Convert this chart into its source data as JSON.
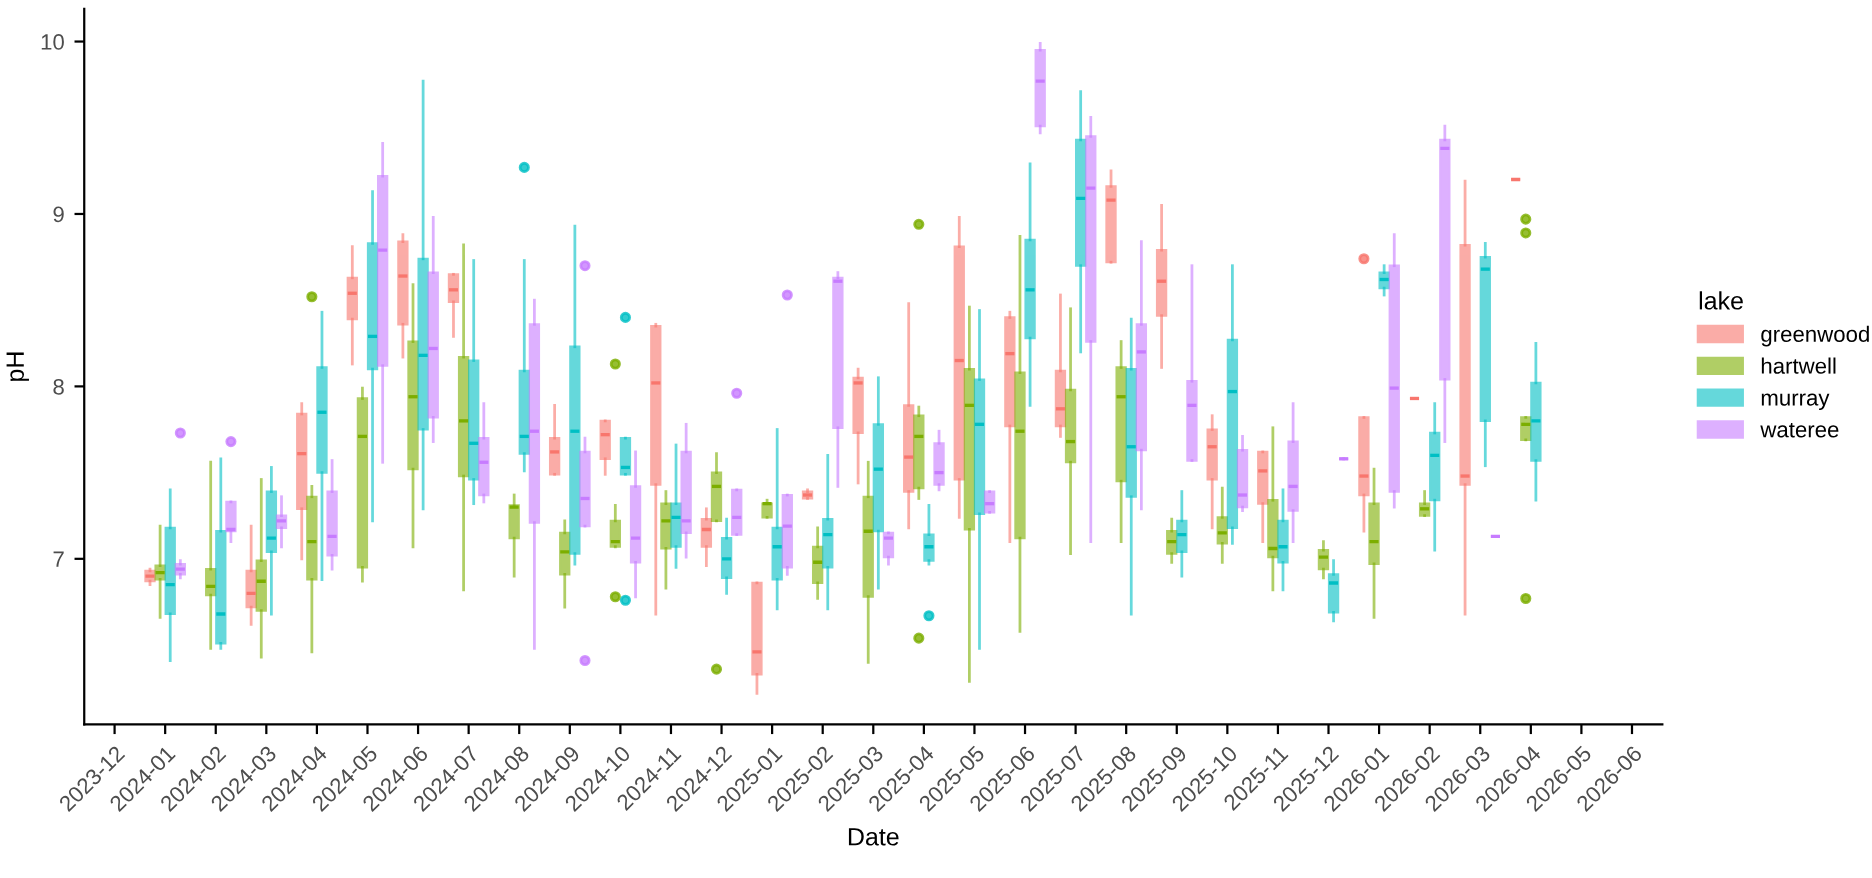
{
  "chart_data": {
    "type": "box",
    "xlabel": "Date",
    "ylabel": "pH",
    "legend_title": "lake",
    "legend": "right",
    "grid": false,
    "categories": [
      "2023-12",
      "2024-01",
      "2024-02",
      "2024-03",
      "2024-04",
      "2024-05",
      "2024-06",
      "2024-07",
      "2024-08",
      "2024-09",
      "2024-10",
      "2024-11",
      "2024-12",
      "2025-01",
      "2025-02",
      "2025-03",
      "2025-04",
      "2025-05",
      "2025-06",
      "2025-07",
      "2025-08",
      "2025-09",
      "2025-10",
      "2025-11",
      "2025-12",
      "2026-01",
      "2026-02",
      "2026-03",
      "2026-04",
      "2026-05",
      "2026-06"
    ],
    "ylim": [
      6.04,
      10.19
    ],
    "yticks": [
      7,
      8,
      9,
      10
    ],
    "series": [
      {
        "name": "greenwood",
        "color": "#f8766d",
        "boxes": [
          null,
          {
            "low": 6.85,
            "q1": 6.87,
            "median": 6.9,
            "q3": 6.93,
            "high": 6.94
          },
          null,
          {
            "low": 6.62,
            "q1": 6.72,
            "median": 6.8,
            "q3": 6.93,
            "high": 7.19
          },
          {
            "low": 7.0,
            "q1": 7.29,
            "median": 7.61,
            "q3": 7.84,
            "high": 7.9
          },
          {
            "low": 8.13,
            "q1": 8.39,
            "median": 8.54,
            "q3": 8.63,
            "high": 8.81
          },
          {
            "low": 8.17,
            "q1": 8.36,
            "median": 8.64,
            "q3": 8.84,
            "high": 8.88
          },
          {
            "low": 8.29,
            "q1": 8.49,
            "median": 8.56,
            "q3": 8.65,
            "high": 8.65
          },
          null,
          {
            "low": 7.49,
            "q1": 7.49,
            "median": 7.62,
            "q3": 7.7,
            "high": 7.89
          },
          {
            "low": 7.49,
            "q1": 7.58,
            "median": 7.72,
            "q3": 7.8,
            "high": 7.8
          },
          {
            "low": 6.68,
            "q1": 7.43,
            "median": 8.02,
            "q3": 8.35,
            "high": 8.36
          },
          {
            "low": 6.96,
            "q1": 7.07,
            "median": 7.17,
            "q3": 7.23,
            "high": 7.29
          },
          {
            "low": 6.22,
            "q1": 6.33,
            "median": 6.46,
            "q3": 6.86,
            "high": 6.86
          },
          {
            "low": 7.35,
            "q1": 7.35,
            "median": 7.37,
            "q3": 7.39,
            "high": 7.4
          },
          {
            "low": 7.44,
            "q1": 7.73,
            "median": 8.02,
            "q3": 8.05,
            "high": 8.1
          },
          {
            "low": 7.18,
            "q1": 7.39,
            "median": 7.59,
            "q3": 7.89,
            "high": 8.48
          },
          {
            "low": 7.24,
            "q1": 7.46,
            "median": 8.15,
            "q3": 8.81,
            "high": 8.98
          },
          {
            "low": 7.1,
            "q1": 7.77,
            "median": 8.19,
            "q3": 8.4,
            "high": 8.43
          },
          {
            "low": 7.71,
            "q1": 7.77,
            "median": 7.87,
            "q3": 8.09,
            "high": 8.53
          },
          {
            "low": 8.72,
            "q1": 8.72,
            "median": 9.08,
            "q3": 9.16,
            "high": 9.25
          },
          {
            "low": 8.11,
            "q1": 8.41,
            "median": 8.61,
            "q3": 8.79,
            "high": 9.05
          },
          {
            "low": 7.18,
            "q1": 7.46,
            "median": 7.65,
            "q3": 7.75,
            "high": 7.83
          },
          {
            "low": 7.1,
            "q1": 7.32,
            "median": 7.51,
            "q3": 7.62,
            "high": 7.62
          },
          null,
          {
            "low": 7.16,
            "q1": 7.37,
            "median": 7.48,
            "q3": 7.82,
            "high": 7.82,
            "outliers": [
              8.74
            ]
          },
          {
            "low": 7.93,
            "q1": 7.93,
            "median": 7.93,
            "q3": 7.93,
            "high": 7.93
          },
          {
            "low": 6.68,
            "q1": 7.43,
            "median": 7.48,
            "q3": 8.82,
            "high": 9.19
          },
          {
            "low": 9.2,
            "q1": 9.2,
            "median": 9.2,
            "q3": 9.2,
            "high": 9.2
          },
          null,
          null
        ]
      },
      {
        "name": "hartwell",
        "color": "#7cae00",
        "boxes": [
          null,
          {
            "low": 6.66,
            "q1": 6.88,
            "median": 6.92,
            "q3": 6.96,
            "high": 7.19
          },
          {
            "low": 6.48,
            "q1": 6.79,
            "median": 6.84,
            "q3": 6.94,
            "high": 7.56
          },
          {
            "low": 6.43,
            "q1": 6.7,
            "median": 6.87,
            "q3": 6.99,
            "high": 7.46
          },
          {
            "low": 6.46,
            "q1": 6.88,
            "median": 7.1,
            "q3": 7.36,
            "high": 7.42,
            "outliers": [
              8.52
            ]
          },
          {
            "low": 6.87,
            "q1": 6.95,
            "median": 7.71,
            "q3": 7.93,
            "high": 7.99
          },
          {
            "low": 7.07,
            "q1": 7.52,
            "median": 7.94,
            "q3": 8.26,
            "high": 8.59
          },
          {
            "low": 6.82,
            "q1": 7.48,
            "median": 7.8,
            "q3": 8.17,
            "high": 8.82
          },
          {
            "low": 6.9,
            "q1": 7.12,
            "median": 7.3,
            "q3": 7.31,
            "high": 7.37
          },
          {
            "low": 6.72,
            "q1": 6.91,
            "median": 7.04,
            "q3": 7.15,
            "high": 7.22
          },
          {
            "low": 7.07,
            "q1": 7.07,
            "median": 7.1,
            "q3": 7.22,
            "high": 7.31,
            "outliers": [
              8.13,
              6.78
            ]
          },
          {
            "low": 6.83,
            "q1": 7.06,
            "median": 7.22,
            "q3": 7.32,
            "high": 7.39
          },
          {
            "low": 7.22,
            "q1": 7.22,
            "median": 7.42,
            "q3": 7.5,
            "high": 7.61,
            "outliers": [
              6.36
            ]
          },
          {
            "low": 7.24,
            "q1": 7.24,
            "median": 7.32,
            "q3": 7.32,
            "high": 7.34
          },
          {
            "low": 6.77,
            "q1": 6.86,
            "median": 6.98,
            "q3": 7.07,
            "high": 7.18
          },
          {
            "low": 6.4,
            "q1": 6.78,
            "median": 7.16,
            "q3": 7.36,
            "high": 7.56
          },
          {
            "low": 7.35,
            "q1": 7.41,
            "median": 7.71,
            "q3": 7.83,
            "high": 7.88,
            "outliers": [
              8.94,
              6.54
            ]
          },
          {
            "low": 6.29,
            "q1": 7.17,
            "median": 7.89,
            "q3": 8.1,
            "high": 8.46
          },
          {
            "low": 6.58,
            "q1": 7.12,
            "median": 7.74,
            "q3": 8.08,
            "high": 8.87
          },
          {
            "low": 7.03,
            "q1": 7.56,
            "median": 7.68,
            "q3": 7.98,
            "high": 8.45
          },
          {
            "low": 7.1,
            "q1": 7.45,
            "median": 7.94,
            "q3": 8.11,
            "high": 8.26
          },
          {
            "low": 6.98,
            "q1": 7.03,
            "median": 7.1,
            "q3": 7.16,
            "high": 7.23
          },
          {
            "low": 6.98,
            "q1": 7.09,
            "median": 7.15,
            "q3": 7.24,
            "high": 7.41
          },
          {
            "low": 6.82,
            "q1": 7.01,
            "median": 7.06,
            "q3": 7.34,
            "high": 7.76
          },
          {
            "low": 6.89,
            "q1": 6.94,
            "median": 7.01,
            "q3": 7.05,
            "high": 7.1
          },
          {
            "low": 6.66,
            "q1": 6.97,
            "median": 7.1,
            "q3": 7.32,
            "high": 7.52
          },
          {
            "low": 7.25,
            "q1": 7.25,
            "median": 7.29,
            "q3": 7.32,
            "high": 7.39
          },
          null,
          {
            "low": 7.69,
            "q1": 7.69,
            "median": 7.78,
            "q3": 7.82,
            "high": 7.82,
            "outliers": [
              8.97,
              8.89,
              6.77
            ]
          },
          null,
          null
        ]
      },
      {
        "name": "murray",
        "color": "#00bfc4",
        "boxes": [
          null,
          {
            "low": 6.41,
            "q1": 6.68,
            "median": 6.85,
            "q3": 7.18,
            "high": 7.4
          },
          {
            "low": 6.48,
            "q1": 6.51,
            "median": 6.68,
            "q3": 7.16,
            "high": 7.58
          },
          {
            "low": 6.68,
            "q1": 7.04,
            "median": 7.12,
            "q3": 7.39,
            "high": 7.53
          },
          {
            "low": 6.88,
            "q1": 7.5,
            "median": 7.85,
            "q3": 8.11,
            "high": 8.43
          },
          {
            "low": 7.22,
            "q1": 8.1,
            "median": 8.29,
            "q3": 8.83,
            "high": 9.13
          },
          {
            "low": 7.29,
            "q1": 7.75,
            "median": 8.18,
            "q3": 8.74,
            "high": 9.77
          },
          {
            "low": 7.32,
            "q1": 7.46,
            "median": 7.67,
            "q3": 8.15,
            "high": 8.73
          },
          {
            "low": 7.51,
            "q1": 7.61,
            "median": 7.71,
            "q3": 8.09,
            "high": 8.73,
            "outliers": [
              9.27
            ]
          },
          {
            "low": 6.97,
            "q1": 7.03,
            "median": 7.74,
            "q3": 8.23,
            "high": 8.93
          },
          {
            "low": 7.49,
            "q1": 7.49,
            "median": 7.53,
            "q3": 7.7,
            "high": 7.7,
            "outliers": [
              8.4,
              6.76
            ]
          },
          {
            "low": 6.95,
            "q1": 7.07,
            "median": 7.24,
            "q3": 7.32,
            "high": 7.66
          },
          {
            "low": 6.8,
            "q1": 6.89,
            "median": 7.0,
            "q3": 7.12,
            "high": 7.23
          },
          {
            "low": 6.71,
            "q1": 6.88,
            "median": 7.07,
            "q3": 7.18,
            "high": 7.75
          },
          {
            "low": 6.71,
            "q1": 6.95,
            "median": 7.14,
            "q3": 7.23,
            "high": 7.6
          },
          {
            "low": 6.83,
            "q1": 7.16,
            "median": 7.52,
            "q3": 7.78,
            "high": 8.05
          },
          {
            "low": 6.97,
            "q1": 6.99,
            "median": 7.07,
            "q3": 7.14,
            "high": 7.31,
            "outliers": [
              6.67
            ]
          },
          {
            "low": 6.48,
            "q1": 7.26,
            "median": 7.78,
            "q3": 8.04,
            "high": 8.44
          },
          {
            "low": 7.89,
            "q1": 8.28,
            "median": 8.56,
            "q3": 8.85,
            "high": 9.29
          },
          {
            "low": 8.2,
            "q1": 8.7,
            "median": 9.09,
            "q3": 9.43,
            "high": 9.71
          },
          {
            "low": 6.68,
            "q1": 7.36,
            "median": 7.65,
            "q3": 8.1,
            "high": 8.39
          },
          {
            "low": 6.9,
            "q1": 7.04,
            "median": 7.14,
            "q3": 7.22,
            "high": 7.39
          },
          {
            "low": 7.09,
            "q1": 7.18,
            "median": 7.97,
            "q3": 8.27,
            "high": 8.7
          },
          {
            "low": 6.82,
            "q1": 6.98,
            "median": 7.07,
            "q3": 7.22,
            "high": 7.4
          },
          {
            "low": 6.64,
            "q1": 6.69,
            "median": 6.86,
            "q3": 6.91,
            "high": 6.99
          },
          {
            "low": 8.53,
            "q1": 8.57,
            "median": 8.62,
            "q3": 8.66,
            "high": 8.7
          },
          {
            "low": 7.05,
            "q1": 7.34,
            "median": 7.6,
            "q3": 7.73,
            "high": 7.9
          },
          {
            "low": 7.54,
            "q1": 7.8,
            "median": 8.68,
            "q3": 8.75,
            "high": 8.83
          },
          {
            "low": 7.34,
            "q1": 7.57,
            "median": 7.8,
            "q3": 8.02,
            "high": 8.25
          },
          null,
          null
        ]
      },
      {
        "name": "wateree",
        "color": "#c77cff",
        "boxes": [
          null,
          {
            "low": 6.89,
            "q1": 6.91,
            "median": 6.94,
            "q3": 6.97,
            "high": 6.99,
            "outliers": [
              7.73
            ]
          },
          {
            "low": 7.1,
            "q1": 7.16,
            "median": 7.17,
            "q3": 7.33,
            "high": 7.33,
            "outliers": [
              7.68
            ]
          },
          {
            "low": 7.07,
            "q1": 7.18,
            "median": 7.22,
            "q3": 7.25,
            "high": 7.36
          },
          {
            "low": 6.94,
            "q1": 7.02,
            "median": 7.13,
            "q3": 7.39,
            "high": 7.57
          },
          {
            "low": 7.56,
            "q1": 8.12,
            "median": 8.79,
            "q3": 9.22,
            "high": 9.41
          },
          {
            "low": 7.68,
            "q1": 7.82,
            "median": 8.22,
            "q3": 8.66,
            "high": 8.98
          },
          {
            "low": 7.33,
            "q1": 7.37,
            "median": 7.56,
            "q3": 7.7,
            "high": 7.9
          },
          {
            "low": 6.48,
            "q1": 7.21,
            "median": 7.74,
            "q3": 8.36,
            "high": 8.5
          },
          {
            "low": 7.19,
            "q1": 7.19,
            "median": 7.35,
            "q3": 7.62,
            "high": 7.7,
            "outliers": [
              8.7,
              6.41
            ]
          },
          {
            "low": 6.78,
            "q1": 6.98,
            "median": 7.12,
            "q3": 7.42,
            "high": 7.62
          },
          {
            "low": 7.01,
            "q1": 7.15,
            "median": 7.22,
            "q3": 7.62,
            "high": 7.78
          },
          {
            "low": 7.14,
            "q1": 7.14,
            "median": 7.24,
            "q3": 7.4,
            "high": 7.4,
            "outliers": [
              7.96
            ]
          },
          {
            "low": 6.91,
            "q1": 6.95,
            "median": 7.19,
            "q3": 7.37,
            "high": 7.37,
            "outliers": [
              8.53
            ]
          },
          {
            "low": 7.42,
            "q1": 7.76,
            "median": 8.61,
            "q3": 8.63,
            "high": 8.66
          },
          {
            "low": 6.97,
            "q1": 7.01,
            "median": 7.12,
            "q3": 7.15,
            "high": 7.15
          },
          {
            "low": 7.4,
            "q1": 7.43,
            "median": 7.5,
            "q3": 7.67,
            "high": 7.74
          },
          {
            "low": 7.27,
            "q1": 7.27,
            "median": 7.32,
            "q3": 7.39,
            "high": 7.39
          },
          {
            "low": 9.47,
            "q1": 9.51,
            "median": 9.77,
            "q3": 9.95,
            "high": 9.99
          },
          {
            "low": 7.1,
            "q1": 8.26,
            "median": 9.15,
            "q3": 9.45,
            "high": 9.56
          },
          {
            "low": 7.29,
            "q1": 7.63,
            "median": 8.2,
            "q3": 8.36,
            "high": 8.84
          },
          {
            "low": 7.57,
            "q1": 7.57,
            "median": 7.89,
            "q3": 8.03,
            "high": 8.7
          },
          {
            "low": 7.28,
            "q1": 7.3,
            "median": 7.37,
            "q3": 7.63,
            "high": 7.71
          },
          {
            "low": 7.1,
            "q1": 7.28,
            "median": 7.42,
            "q3": 7.68,
            "high": 7.9
          },
          {
            "low": 7.58,
            "q1": 7.58,
            "median": 7.58,
            "q3": 7.58,
            "high": 7.58
          },
          {
            "low": 7.3,
            "q1": 7.39,
            "median": 7.99,
            "q3": 8.7,
            "high": 8.88
          },
          {
            "low": 7.68,
            "q1": 8.04,
            "median": 9.38,
            "q3": 9.43,
            "high": 9.51
          },
          {
            "low": 7.13,
            "q1": 7.13,
            "median": 7.13,
            "q3": 7.13,
            "high": 7.13
          },
          null,
          null,
          null
        ]
      }
    ]
  }
}
